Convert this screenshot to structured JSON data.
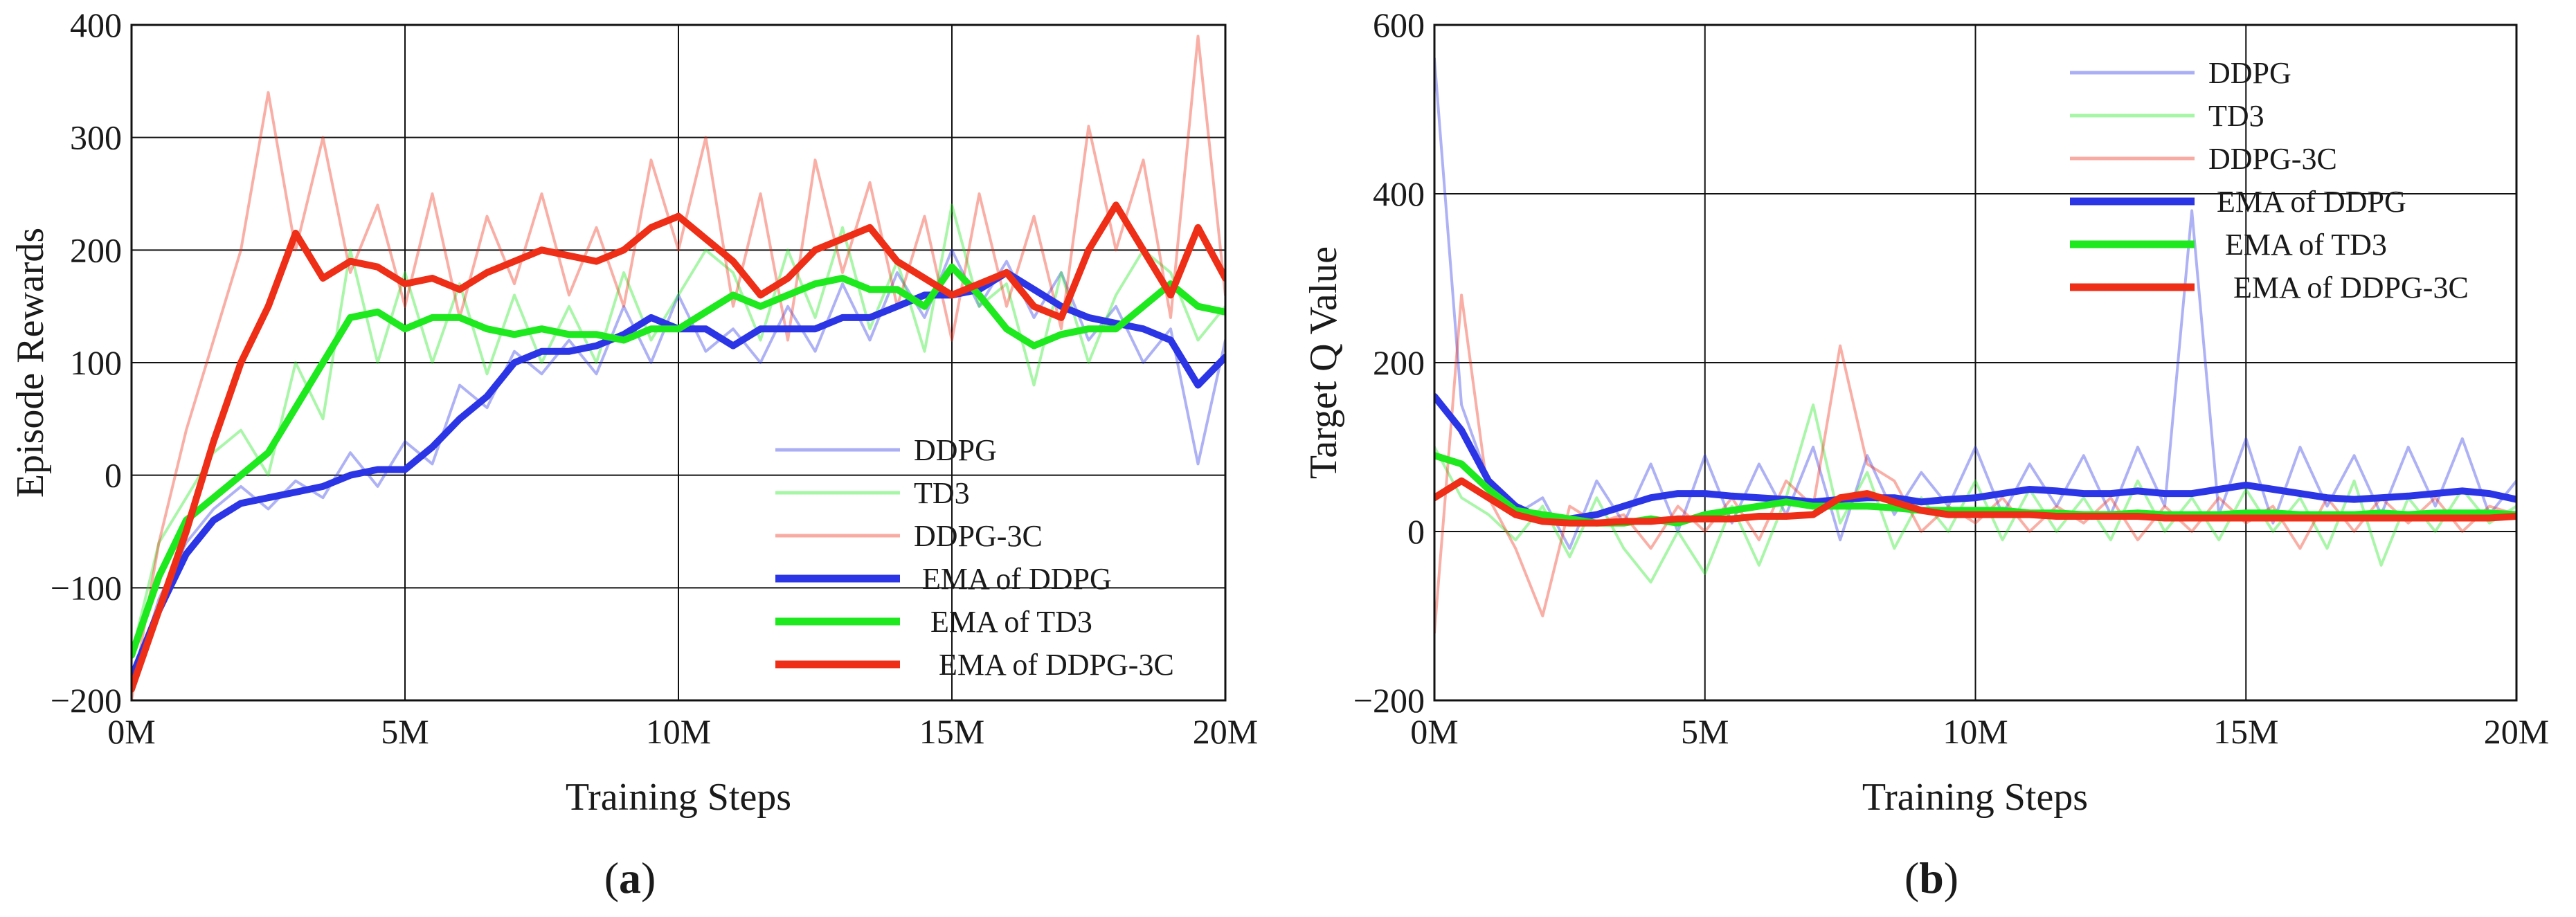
{
  "figure": {
    "colors": {
      "ddpg": "#2b35e6",
      "td3": "#1ee81e",
      "ddpg3c": "#ee2e16",
      "grid": "#111111",
      "axis": "#111111"
    }
  },
  "chart_data": [
    {
      "type": "line",
      "panel_label": {
        "open": "(",
        "letter": "a",
        "close": ")"
      },
      "xlabel": "Training Steps",
      "ylabel": "Episode Rewards",
      "xlim": [
        0,
        20
      ],
      "ylim": [
        -200,
        400
      ],
      "xticks": [
        0,
        5,
        10,
        15,
        20
      ],
      "xtick_labels": [
        "0M",
        "5M",
        "10M",
        "15M",
        "20M"
      ],
      "yticks": [
        -200,
        -100,
        0,
        100,
        200,
        300,
        400
      ],
      "ytick_labels": [
        "−200",
        "−100",
        "0",
        "100",
        "200",
        "300",
        "400"
      ],
      "grid": true,
      "legend_position": "bottom-right",
      "legend": [
        "DDPG",
        "TD3",
        "DDPG-3C",
        "EMA of DDPG",
        "EMA of TD3",
        "EMA of DDPG-3C"
      ],
      "x": [
        0,
        0.5,
        1,
        1.5,
        2,
        2.5,
        3,
        3.5,
        4,
        4.5,
        5,
        5.5,
        6,
        6.5,
        7,
        7.5,
        8,
        8.5,
        9,
        9.5,
        10,
        10.5,
        11,
        11.5,
        12,
        12.5,
        13,
        13.5,
        14,
        14.5,
        15,
        15.5,
        16,
        16.5,
        17,
        17.5,
        18,
        18.5,
        19,
        19.5,
        20
      ],
      "series": [
        {
          "name": "EMA of DDPG",
          "color": "#2b35e6",
          "values": [
            -180,
            -120,
            -70,
            -40,
            -25,
            -20,
            -15,
            -10,
            0,
            5,
            5,
            25,
            50,
            70,
            100,
            110,
            110,
            115,
            125,
            140,
            130,
            130,
            115,
            130,
            130,
            130,
            140,
            140,
            150,
            160,
            160,
            165,
            180,
            165,
            150,
            140,
            135,
            130,
            120,
            80,
            105
          ]
        },
        {
          "name": "EMA of TD3",
          "color": "#1ee81e",
          "values": [
            -160,
            -90,
            -40,
            -20,
            0,
            20,
            60,
            100,
            140,
            145,
            130,
            140,
            140,
            130,
            125,
            130,
            125,
            125,
            120,
            130,
            130,
            145,
            160,
            150,
            160,
            170,
            175,
            165,
            165,
            150,
            185,
            160,
            130,
            115,
            125,
            130,
            130,
            150,
            170,
            150,
            145
          ]
        },
        {
          "name": "EMA of DDPG-3C",
          "color": "#ee2e16",
          "values": [
            -190,
            -120,
            -50,
            30,
            100,
            150,
            215,
            175,
            190,
            185,
            170,
            175,
            165,
            180,
            190,
            200,
            195,
            190,
            200,
            220,
            230,
            210,
            190,
            160,
            175,
            200,
            210,
            220,
            190,
            175,
            160,
            170,
            180,
            150,
            140,
            200,
            240,
            200,
            160,
            220,
            175
          ]
        },
        {
          "name": "DDPG",
          "color": "#2b35e6",
          "values": [
            -190,
            -110,
            -60,
            -30,
            -10,
            -30,
            -5,
            -20,
            20,
            -10,
            30,
            10,
            80,
            60,
            110,
            90,
            120,
            90,
            150,
            100,
            160,
            110,
            130,
            100,
            150,
            110,
            170,
            120,
            180,
            140,
            200,
            150,
            190,
            140,
            180,
            120,
            150,
            100,
            130,
            10,
            120
          ]
        },
        {
          "name": "TD3",
          "color": "#1ee81e",
          "values": [
            -160,
            -60,
            -20,
            20,
            40,
            0,
            100,
            50,
            200,
            100,
            180,
            100,
            170,
            90,
            160,
            100,
            150,
            100,
            180,
            120,
            160,
            200,
            180,
            120,
            200,
            140,
            220,
            130,
            190,
            110,
            240,
            150,
            170,
            80,
            180,
            100,
            160,
            200,
            180,
            120,
            150
          ]
        },
        {
          "name": "DDPG-3C",
          "color": "#ee2e16",
          "values": [
            -200,
            -60,
            40,
            120,
            200,
            340,
            200,
            300,
            180,
            240,
            150,
            250,
            140,
            230,
            170,
            250,
            160,
            220,
            150,
            280,
            200,
            300,
            150,
            250,
            120,
            280,
            180,
            260,
            150,
            230,
            120,
            250,
            150,
            230,
            130,
            310,
            200,
            280,
            140,
            390,
            160
          ]
        }
      ]
    },
    {
      "type": "line",
      "panel_label": {
        "open": "(",
        "letter": "b",
        "close": ")"
      },
      "xlabel": "Training Steps",
      "ylabel": "Target Q Value",
      "xlim": [
        0,
        20
      ],
      "ylim": [
        -200,
        600
      ],
      "xticks": [
        0,
        5,
        10,
        15,
        20
      ],
      "xtick_labels": [
        "0M",
        "5M",
        "10M",
        "15M",
        "20M"
      ],
      "yticks": [
        -200,
        0,
        200,
        400,
        600
      ],
      "ytick_labels": [
        "−200",
        "0",
        "200",
        "400",
        "600"
      ],
      "grid": true,
      "legend_position": "top-right",
      "legend": [
        "DDPG",
        "TD3",
        "DDPG-3C",
        "EMA of DDPG",
        "EMA of TD3",
        "EMA of DDPG-3C"
      ],
      "x": [
        0,
        0.5,
        1,
        1.5,
        2,
        2.5,
        3,
        3.5,
        4,
        4.5,
        5,
        5.5,
        6,
        6.5,
        7,
        7.5,
        8,
        8.5,
        9,
        9.5,
        10,
        10.5,
        11,
        11.5,
        12,
        12.5,
        13,
        13.5,
        14,
        14.5,
        15,
        15.5,
        16,
        16.5,
        17,
        17.5,
        18,
        18.5,
        19,
        19.5,
        20
      ],
      "series": [
        {
          "name": "EMA of DDPG",
          "color": "#2b35e6",
          "values": [
            160,
            120,
            60,
            30,
            15,
            15,
            20,
            30,
            40,
            45,
            45,
            42,
            40,
            38,
            35,
            38,
            40,
            40,
            35,
            38,
            40,
            45,
            50,
            48,
            45,
            45,
            48,
            45,
            45,
            50,
            55,
            50,
            45,
            40,
            38,
            40,
            42,
            45,
            48,
            45,
            38
          ]
        },
        {
          "name": "EMA of TD3",
          "color": "#1ee81e",
          "values": [
            90,
            80,
            50,
            25,
            20,
            15,
            10,
            10,
            15,
            10,
            20,
            25,
            30,
            35,
            30,
            30,
            30,
            28,
            25,
            25,
            25,
            25,
            22,
            22,
            20,
            20,
            22,
            20,
            20,
            20,
            22,
            22,
            20,
            20,
            20,
            22,
            20,
            22,
            22,
            22,
            20
          ]
        },
        {
          "name": "EMA of DDPG-3C",
          "color": "#ee2e16",
          "values": [
            40,
            60,
            40,
            20,
            12,
            10,
            10,
            12,
            12,
            15,
            15,
            15,
            18,
            18,
            20,
            40,
            45,
            35,
            25,
            20,
            20,
            20,
            20,
            18,
            18,
            18,
            18,
            16,
            16,
            16,
            16,
            16,
            16,
            16,
            16,
            16,
            16,
            16,
            16,
            16,
            18
          ]
        },
        {
          "name": "DDPG",
          "color": "#2b35e6",
          "values": [
            560,
            150,
            60,
            20,
            40,
            -20,
            60,
            10,
            80,
            0,
            90,
            10,
            80,
            20,
            100,
            -10,
            90,
            20,
            70,
            30,
            100,
            20,
            80,
            30,
            90,
            20,
            100,
            30,
            380,
            20,
            110,
            10,
            100,
            30,
            90,
            20,
            100,
            30,
            110,
            20,
            60
          ]
        },
        {
          "name": "TD3",
          "color": "#1ee81e",
          "values": [
            100,
            40,
            20,
            -10,
            30,
            -30,
            40,
            -20,
            -60,
            0,
            -50,
            30,
            -40,
            40,
            150,
            10,
            70,
            -20,
            40,
            0,
            60,
            -10,
            50,
            0,
            40,
            -10,
            60,
            0,
            40,
            -10,
            50,
            0,
            40,
            -20,
            60,
            -40,
            40,
            0,
            50,
            10,
            30
          ]
        },
        {
          "name": "DDPG-3C",
          "color": "#ee2e16",
          "values": [
            -120,
            280,
            40,
            -20,
            -100,
            30,
            10,
            20,
            -20,
            30,
            0,
            40,
            -10,
            60,
            30,
            220,
            80,
            60,
            0,
            30,
            10,
            40,
            0,
            30,
            10,
            40,
            -10,
            30,
            0,
            40,
            10,
            30,
            -20,
            40,
            0,
            40,
            10,
            40,
            0,
            30,
            20
          ]
        }
      ]
    }
  ]
}
